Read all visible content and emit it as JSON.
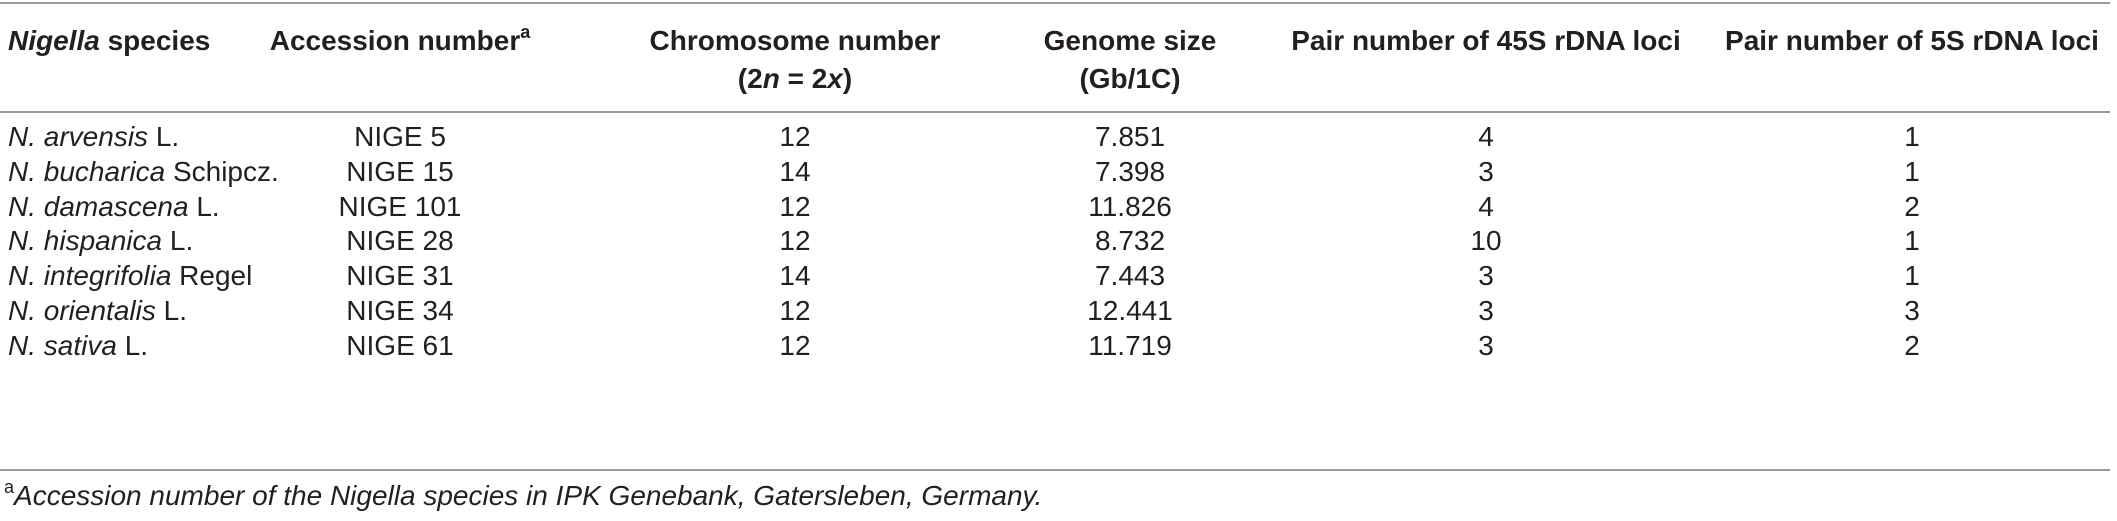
{
  "header": {
    "species_italic": "Nigella",
    "species_rest": " species",
    "accession_label": "Accession number",
    "accession_sup": "a",
    "chromosome_line1": "Chromosome number",
    "chromosome_line2_open": "(2",
    "chromosome_line2_n": "n",
    "chromosome_line2_mid": " = 2",
    "chromosome_line2_x": "x",
    "chromosome_line2_close": ")",
    "genome_line1": "Genome size",
    "genome_line2": "(Gb/1C)",
    "loci45s": "Pair number of 45S rDNA loci",
    "loci5s": "Pair number of 5S rDNA loci"
  },
  "rows": [
    {
      "species_italic": "N. arvensis",
      "authority": " L.",
      "accession": "NIGE 5",
      "chromosome": "12",
      "genome_size": "7.851",
      "loci45s": "4",
      "loci5s": "1"
    },
    {
      "species_italic": "N. bucharica",
      "authority": " Schipcz.",
      "accession": "NIGE 15",
      "chromosome": "14",
      "genome_size": "7.398",
      "loci45s": "3",
      "loci5s": "1"
    },
    {
      "species_italic": "N. damascena",
      "authority": " L.",
      "accession": "NIGE 101",
      "chromosome": "12",
      "genome_size": "11.826",
      "loci45s": "4",
      "loci5s": "2"
    },
    {
      "species_italic": "N. hispanica",
      "authority": " L.",
      "accession": "NIGE 28",
      "chromosome": "12",
      "genome_size": "8.732",
      "loci45s": "10",
      "loci5s": "1"
    },
    {
      "species_italic": "N. integrifolia",
      "authority": " Regel",
      "accession": "NIGE 31",
      "chromosome": "14",
      "genome_size": "7.443",
      "loci45s": "3",
      "loci5s": "1"
    },
    {
      "species_italic": "N. orientalis",
      "authority": " L.",
      "accession": "NIGE 34",
      "chromosome": "12",
      "genome_size": "12.441",
      "loci45s": "3",
      "loci5s": "3"
    },
    {
      "species_italic": "N. sativa",
      "authority": " L.",
      "accession": "NIGE 61",
      "chromosome": "12",
      "genome_size": "11.719",
      "loci45s": "3",
      "loci5s": "2"
    }
  ],
  "footnote": {
    "marker": "a",
    "text": "Accession number of the Nigella species in IPK Genebank, Gatersleben, Germany."
  }
}
